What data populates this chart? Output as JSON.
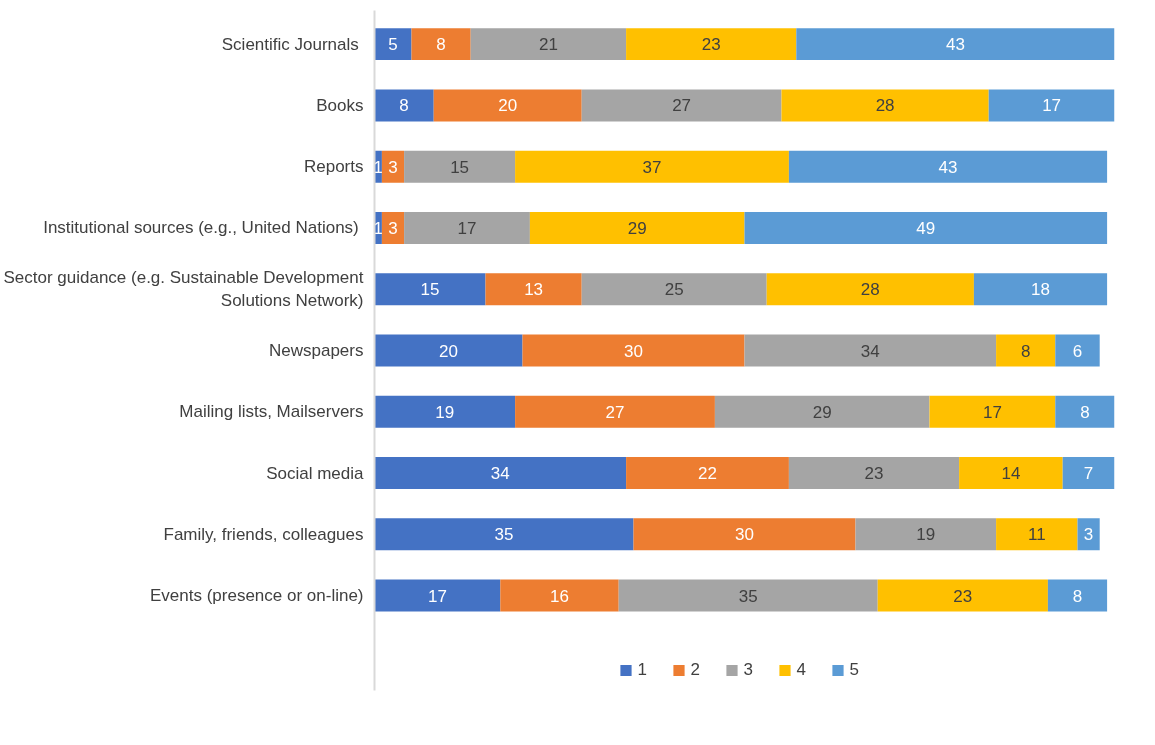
{
  "chart_data": {
    "type": "bar",
    "orientation": "horizontal",
    "stacked": true,
    "data_labels": true,
    "grid": false,
    "legend": "bottom",
    "tick_labels": "y",
    "categories": [
      "Scientific  Journals",
      "Books",
      "Reports",
      "Institutional sources  (e.g., United Nations)",
      "Sector guidance (e.g. Sustainable Development Solutions Network)",
      "Newspapers",
      "Mailing lists, Mailservers",
      "Social media",
      "Family, friends, colleagues",
      "Events (presence or on-line)"
    ],
    "series": [
      {
        "name": "1",
        "color": "#4472c4",
        "values": [
          5,
          8,
          1,
          1,
          15,
          20,
          19,
          34,
          35,
          17
        ]
      },
      {
        "name": "2",
        "color": "#ed7d31",
        "values": [
          8,
          20,
          3,
          3,
          13,
          30,
          27,
          22,
          30,
          16
        ]
      },
      {
        "name": "3",
        "color": "#a5a5a5",
        "values": [
          21,
          27,
          15,
          17,
          25,
          34,
          29,
          23,
          19,
          35
        ]
      },
      {
        "name": "4",
        "color": "#ffc000",
        "values": [
          23,
          28,
          37,
          29,
          28,
          8,
          17,
          14,
          11,
          23
        ]
      },
      {
        "name": "5",
        "color": "#5b9bd5",
        "values": [
          43,
          17,
          43,
          49,
          18,
          6,
          8,
          7,
          3,
          8
        ]
      }
    ]
  }
}
